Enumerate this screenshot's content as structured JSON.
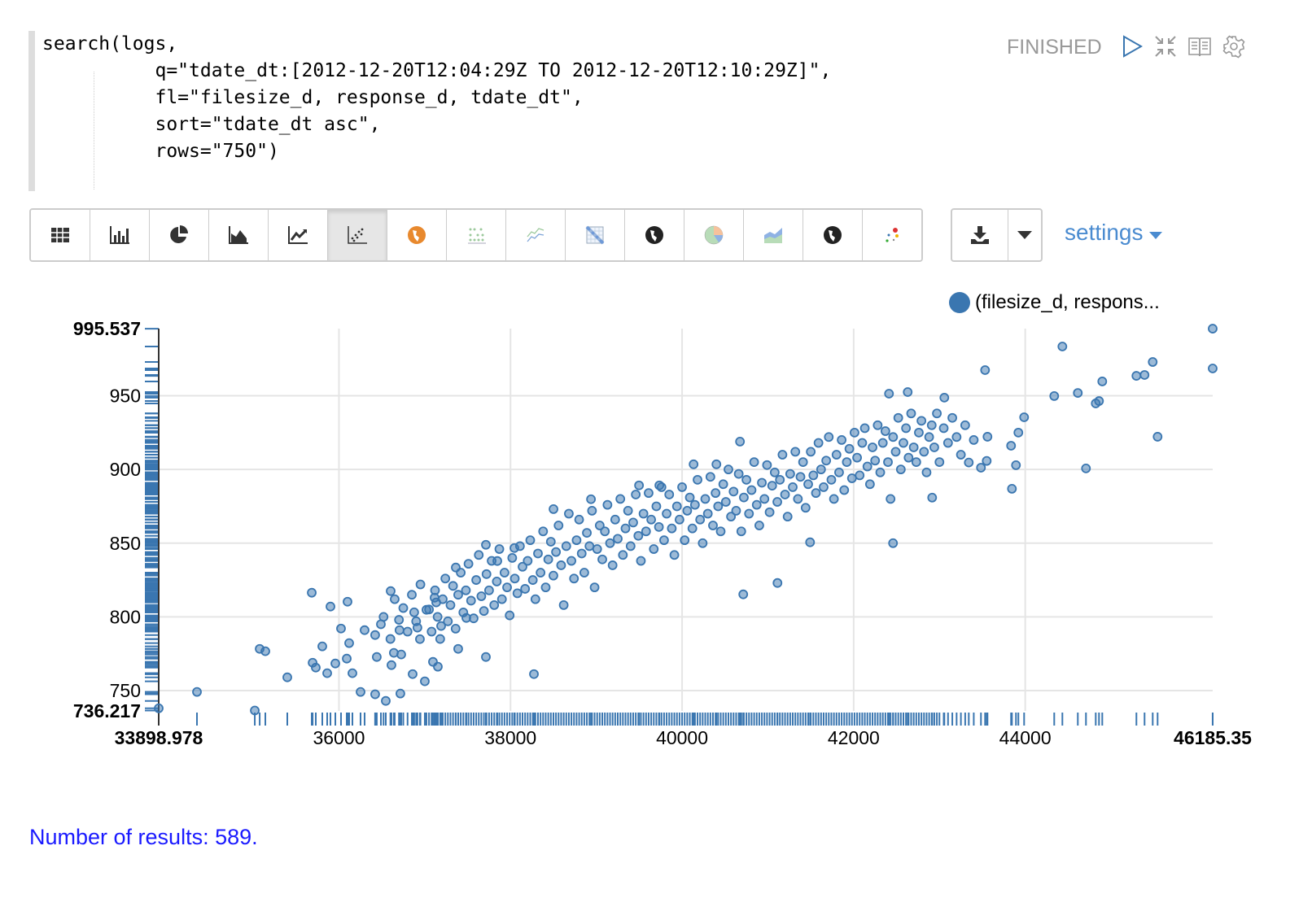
{
  "paragraph": {
    "code_lines": [
      "search(logs,",
      "       q=\"tdate_dt:[2012-12-20T12:04:29Z TO 2012-12-20T12:10:29Z]\",",
      "       fl=\"filesize_d, response_d, tdate_dt\",",
      "       sort=\"tdate_dt asc\",",
      "       rows=\"750\")"
    ],
    "status": "FINISHED",
    "icons": [
      "play-icon",
      "collapse-icon",
      "book-icon",
      "gear-icon"
    ]
  },
  "toolbar": {
    "buttons": [
      "table",
      "bar-chart",
      "pie-chart",
      "area-chart",
      "line-chart",
      "scatter-chart",
      "globe-orange",
      "dot-matrix",
      "multi-line",
      "heatmap-grid",
      "globe-dark",
      "pie-color",
      "stacked-area",
      "globe-dark-2",
      "bubble-dots"
    ],
    "active": "scatter-chart",
    "download_icon": "download-icon",
    "settings_label": "settings"
  },
  "legend": {
    "label": "(filesize_d, respons..."
  },
  "footer": {
    "results": "Number of results: 589."
  },
  "chart_data": {
    "type": "scatter",
    "title": "",
    "series": [
      {
        "name": "(filesize_d, respons...",
        "color": "#3a76b0"
      }
    ],
    "xlim": [
      33898.978,
      46185.35
    ],
    "ylim": [
      736.217,
      995.537
    ],
    "x_ticks": [
      "33898.978",
      "36000",
      "38000",
      "40000",
      "42000",
      "44000",
      "46185.35"
    ],
    "y_ticks": [
      "995.537",
      "950",
      "900",
      "850",
      "800",
      "750",
      "736.217"
    ],
    "grid": true,
    "rug": true,
    "legend_position": "top-right",
    "points": [
      [
        33899,
        738
      ],
      [
        34345,
        749.1
      ],
      [
        35019,
        736.5
      ],
      [
        35076,
        778.3
      ],
      [
        35142,
        776.7
      ],
      [
        35398,
        759
      ],
      [
        35683,
        816.4
      ],
      [
        35693,
        768.9
      ],
      [
        35730,
        765.6
      ],
      [
        35806,
        780
      ],
      [
        35863,
        761.8
      ],
      [
        35901,
        807
      ],
      [
        35958,
        768.4
      ],
      [
        36024,
        792.1
      ],
      [
        36091,
        771.7
      ],
      [
        36100,
        810.3
      ],
      [
        36119,
        782.2
      ],
      [
        36157,
        761.8
      ],
      [
        36252,
        749.1
      ],
      [
        36299,
        791
      ],
      [
        36422,
        747.5
      ],
      [
        36422,
        787.7
      ],
      [
        36441,
        772.8
      ],
      [
        36489,
        795
      ],
      [
        36603,
        817.5
      ],
      [
        36612,
        767.3
      ],
      [
        36640,
        775.6
      ],
      [
        36706,
        791
      ],
      [
        36726,
        774.5
      ],
      [
        36546,
        743
      ],
      [
        36716,
        748
      ],
      [
        36859,
        761.2
      ],
      [
        36877,
        803.1
      ],
      [
        36915,
        792.7
      ],
      [
        36944,
        784.9
      ],
      [
        37001,
        756.3
      ],
      [
        37020,
        804.8
      ],
      [
        37096,
        769.5
      ],
      [
        37115,
        813
      ],
      [
        37134,
        809.8
      ],
      [
        37153,
        766.2
      ],
      [
        37191,
        793.8
      ],
      [
        37362,
        833.5
      ],
      [
        37390,
        778.3
      ],
      [
        37485,
        799.3
      ],
      [
        37713,
        848.9
      ],
      [
        37713,
        772.8
      ],
      [
        37846,
        837.9
      ],
      [
        38045,
        846.7
      ],
      [
        38273,
        761.2
      ],
      [
        38501,
        873.1
      ],
      [
        38938,
        879.8
      ],
      [
        39498,
        889.2
      ],
      [
        39735,
        889.2
      ],
      [
        40134,
        903.5
      ],
      [
        40400,
        903.5
      ],
      [
        40675,
        918.9
      ],
      [
        40713,
        815.3
      ],
      [
        41112,
        823
      ],
      [
        41492,
        850.6
      ],
      [
        42459,
        850
      ],
      [
        42412,
        951.4
      ],
      [
        42630,
        952.5
      ],
      [
        43057,
        948.7
      ],
      [
        43532,
        967.4
      ],
      [
        44433,
        983.4
      ],
      [
        46185,
        995.5
      ],
      [
        46185,
        968.5
      ],
      [
        45486,
        972.9
      ],
      [
        45391,
        964.1
      ],
      [
        45296,
        963.5
      ],
      [
        44898,
        959.7
      ],
      [
        44613,
        951.9
      ],
      [
        44338,
        949.8
      ],
      [
        44860,
        946.4
      ],
      [
        44822,
        944.8
      ],
      [
        45543,
        922.2
      ],
      [
        44708,
        900.7
      ],
      [
        43987,
        935.4
      ],
      [
        43920,
        925
      ],
      [
        43835,
        916.1
      ],
      [
        43892,
        902.9
      ],
      [
        43845,
        886.9
      ],
      [
        43560,
        922.2
      ],
      [
        43484,
        901.2
      ],
      [
        42915,
        880.9
      ],
      [
        43551,
        905.8
      ],
      [
        43342,
        904.7
      ],
      [
        36520,
        800
      ],
      [
        36600,
        785
      ],
      [
        36650,
        812
      ],
      [
        36700,
        798
      ],
      [
        36750,
        806
      ],
      [
        36800,
        790
      ],
      [
        36850,
        815
      ],
      [
        36900,
        797
      ],
      [
        36950,
        822
      ],
      [
        37050,
        805
      ],
      [
        37080,
        790
      ],
      [
        37120,
        818
      ],
      [
        37150,
        800
      ],
      [
        37180,
        785
      ],
      [
        37210,
        812
      ],
      [
        37240,
        826
      ],
      [
        37270,
        797
      ],
      [
        37300,
        808
      ],
      [
        37330,
        821
      ],
      [
        37360,
        792
      ],
      [
        37390,
        815
      ],
      [
        37420,
        830
      ],
      [
        37450,
        803
      ],
      [
        37480,
        818
      ],
      [
        37510,
        836
      ],
      [
        37540,
        811
      ],
      [
        37570,
        799
      ],
      [
        37600,
        825
      ],
      [
        37630,
        842
      ],
      [
        37660,
        814
      ],
      [
        37690,
        804
      ],
      [
        37720,
        829
      ],
      [
        37750,
        818
      ],
      [
        37780,
        838
      ],
      [
        37810,
        808
      ],
      [
        37840,
        824
      ],
      [
        37870,
        846
      ],
      [
        37900,
        812
      ],
      [
        37930,
        830
      ],
      [
        37960,
        820
      ],
      [
        37990,
        801
      ],
      [
        38020,
        840
      ],
      [
        38050,
        826
      ],
      [
        38080,
        816
      ],
      [
        38110,
        848
      ],
      [
        38140,
        834
      ],
      [
        38170,
        819
      ],
      [
        38200,
        838
      ],
      [
        38230,
        852
      ],
      [
        38260,
        825
      ],
      [
        38290,
        812
      ],
      [
        38320,
        843
      ],
      [
        38350,
        830
      ],
      [
        38380,
        858
      ],
      [
        38410,
        820
      ],
      [
        38440,
        839
      ],
      [
        38470,
        851
      ],
      [
        38500,
        828
      ],
      [
        38530,
        844
      ],
      [
        38560,
        862
      ],
      [
        38590,
        835
      ],
      [
        38620,
        808
      ],
      [
        38650,
        848
      ],
      [
        38680,
        870
      ],
      [
        38710,
        838
      ],
      [
        38740,
        826
      ],
      [
        38770,
        852
      ],
      [
        38800,
        866
      ],
      [
        38830,
        843
      ],
      [
        38860,
        830
      ],
      [
        38890,
        857
      ],
      [
        38920,
        848
      ],
      [
        38950,
        872
      ],
      [
        38980,
        820
      ],
      [
        39010,
        846
      ],
      [
        39040,
        862
      ],
      [
        39070,
        839
      ],
      [
        39100,
        858
      ],
      [
        39130,
        876
      ],
      [
        39160,
        850
      ],
      [
        39190,
        835
      ],
      [
        39220,
        866
      ],
      [
        39250,
        853
      ],
      [
        39280,
        880
      ],
      [
        39310,
        842
      ],
      [
        39340,
        860
      ],
      [
        39370,
        872
      ],
      [
        39400,
        848
      ],
      [
        39430,
        864
      ],
      [
        39460,
        883
      ],
      [
        39490,
        855
      ],
      [
        39520,
        838
      ],
      [
        39550,
        870
      ],
      [
        39580,
        858
      ],
      [
        39610,
        884
      ],
      [
        39640,
        866
      ],
      [
        39670,
        846
      ],
      [
        39700,
        875
      ],
      [
        39730,
        861
      ],
      [
        39760,
        888
      ],
      [
        39790,
        852
      ],
      [
        39820,
        870
      ],
      [
        39850,
        883
      ],
      [
        39880,
        860
      ],
      [
        39910,
        842
      ],
      [
        39940,
        875
      ],
      [
        39970,
        866
      ],
      [
        40000,
        888
      ],
      [
        40030,
        852
      ],
      [
        40060,
        872
      ],
      [
        40090,
        881
      ],
      [
        40120,
        860
      ],
      [
        40150,
        876
      ],
      [
        40180,
        893
      ],
      [
        40210,
        866
      ],
      [
        40240,
        850
      ],
      [
        40270,
        880
      ],
      [
        40300,
        870
      ],
      [
        40330,
        895
      ],
      [
        40360,
        862
      ],
      [
        40390,
        884
      ],
      [
        40420,
        875
      ],
      [
        40450,
        858
      ],
      [
        40480,
        890
      ],
      [
        40510,
        878
      ],
      [
        40540,
        900
      ],
      [
        40570,
        868
      ],
      [
        40600,
        885
      ],
      [
        40630,
        872
      ],
      [
        40660,
        897
      ],
      [
        40690,
        858
      ],
      [
        40720,
        881
      ],
      [
        40750,
        893
      ],
      [
        40780,
        870
      ],
      [
        40810,
        886
      ],
      [
        40840,
        905
      ],
      [
        40870,
        876
      ],
      [
        40900,
        862
      ],
      [
        40930,
        891
      ],
      [
        40960,
        880
      ],
      [
        40990,
        903
      ],
      [
        41020,
        871
      ],
      [
        41050,
        889
      ],
      [
        41080,
        898
      ],
      [
        41110,
        878
      ],
      [
        41140,
        893
      ],
      [
        41170,
        910
      ],
      [
        41200,
        883
      ],
      [
        41230,
        868
      ],
      [
        41260,
        897
      ],
      [
        41290,
        888
      ],
      [
        41320,
        912
      ],
      [
        41350,
        880
      ],
      [
        41380,
        895
      ],
      [
        41410,
        905
      ],
      [
        41440,
        874
      ],
      [
        41470,
        890
      ],
      [
        41500,
        912
      ],
      [
        41530,
        896
      ],
      [
        41560,
        884
      ],
      [
        41590,
        918
      ],
      [
        41620,
        900
      ],
      [
        41650,
        888
      ],
      [
        41680,
        906
      ],
      [
        41710,
        922
      ],
      [
        41740,
        893
      ],
      [
        41770,
        880
      ],
      [
        41800,
        910
      ],
      [
        41830,
        898
      ],
      [
        41860,
        920
      ],
      [
        41890,
        886
      ],
      [
        41920,
        905
      ],
      [
        41950,
        914
      ],
      [
        41980,
        894
      ],
      [
        42010,
        925
      ],
      [
        42040,
        908
      ],
      [
        42070,
        896
      ],
      [
        42100,
        918
      ],
      [
        42130,
        928
      ],
      [
        42160,
        902
      ],
      [
        42190,
        890
      ],
      [
        42220,
        915
      ],
      [
        42250,
        906
      ],
      [
        42280,
        930
      ],
      [
        42310,
        898
      ],
      [
        42340,
        918
      ],
      [
        42370,
        926
      ],
      [
        42400,
        905
      ],
      [
        42430,
        880
      ],
      [
        42460,
        922
      ],
      [
        42490,
        912
      ],
      [
        42520,
        935
      ],
      [
        42550,
        900
      ],
      [
        42580,
        918
      ],
      [
        42610,
        928
      ],
      [
        42640,
        908
      ],
      [
        42670,
        938
      ],
      [
        42700,
        915
      ],
      [
        42730,
        905
      ],
      [
        42760,
        925
      ],
      [
        42790,
        933
      ],
      [
        42820,
        912
      ],
      [
        42850,
        898
      ],
      [
        42880,
        922
      ],
      [
        42910,
        930
      ],
      [
        42940,
        915
      ],
      [
        42970,
        938
      ],
      [
        43000,
        905
      ],
      [
        43050,
        928
      ],
      [
        43100,
        918
      ],
      [
        43150,
        935
      ],
      [
        43200,
        922
      ],
      [
        43250,
        910
      ],
      [
        43300,
        930
      ],
      [
        43400,
        920
      ]
    ]
  }
}
